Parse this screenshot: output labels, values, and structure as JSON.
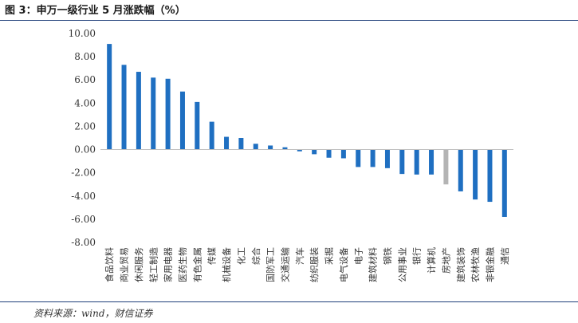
{
  "header": {
    "title": "图 3：申万一级行业 5 月涨跌幅（%）"
  },
  "footer": {
    "source": "资料来源：wind，财信证券"
  },
  "colors": {
    "bar": "#1f6fc1",
    "highlight": "#b4b4b4",
    "axis": "#bfbfbf",
    "rule": "#1f3f7a"
  },
  "chart_data": {
    "type": "bar",
    "title": "申万一级行业 5 月涨跌幅（%）",
    "xlabel": "",
    "ylabel": "",
    "ylim": [
      -8,
      10
    ],
    "yticks": [
      "10.00",
      "8.00",
      "6.00",
      "4.00",
      "2.00",
      "0.00",
      "-2.00",
      "-4.00",
      "-6.00",
      "-8.00"
    ],
    "grid": false,
    "legend": "none",
    "categories": [
      "食品饮料",
      "商业贸易",
      "休闲服务",
      "轻工制造",
      "家用电器",
      "医药生物",
      "有色金属",
      "传媒",
      "机械设备",
      "化工",
      "综合",
      "国防军工",
      "交通运输",
      "汽车",
      "纺织服装",
      "采掘",
      "电气设备",
      "电子",
      "建筑材料",
      "钢铁",
      "公用事业",
      "银行",
      "计算机",
      "房地产",
      "建筑装饰",
      "农林牧渔",
      "非银金融",
      "通信"
    ],
    "values": [
      9.1,
      7.3,
      6.7,
      6.2,
      6.1,
      5.0,
      4.1,
      2.4,
      1.1,
      1.0,
      0.5,
      0.35,
      0.2,
      -0.15,
      -0.4,
      -0.7,
      -0.75,
      -1.5,
      -1.5,
      -1.6,
      -2.1,
      -2.15,
      -2.15,
      -3.0,
      -3.6,
      -4.3,
      -4.5,
      -5.8
    ],
    "highlight_category": "房地产"
  }
}
